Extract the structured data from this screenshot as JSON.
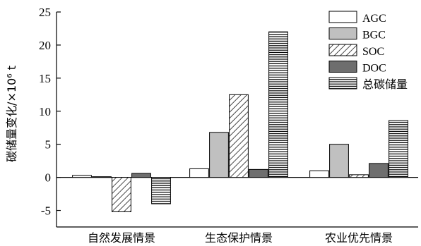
{
  "chart_data": {
    "type": "bar",
    "title": "",
    "xlabel": "",
    "ylabel": "碳储量变化/×10⁶ t",
    "ylim": [
      -7.5,
      25
    ],
    "yticks": [
      25,
      20,
      15,
      10,
      5,
      0,
      -5
    ],
    "grid": false,
    "legend_position": "top-right",
    "categories": [
      "自然发展情景",
      "生态保护情景",
      "农业优先情景"
    ],
    "series": [
      {
        "name": "AGC",
        "pattern": "white",
        "values": [
          0.3,
          1.3,
          1.0
        ]
      },
      {
        "name": "BGC",
        "pattern": "light-gray",
        "values": [
          0.1,
          6.8,
          5.0
        ]
      },
      {
        "name": "SOC",
        "pattern": "diagonal-hatch",
        "values": [
          -5.2,
          12.5,
          0.4
        ]
      },
      {
        "name": "DOC",
        "pattern": "dark-gray",
        "values": [
          0.6,
          1.2,
          2.1
        ]
      },
      {
        "name": "总碳储量",
        "pattern": "horizontal-lines",
        "values": [
          -4.0,
          22.0,
          8.6
        ]
      }
    ],
    "colors": {
      "white": "#ffffff",
      "light-gray": "#c0c0c0",
      "dark-gray": "#6e6e6e",
      "stroke": "#000000"
    }
  }
}
